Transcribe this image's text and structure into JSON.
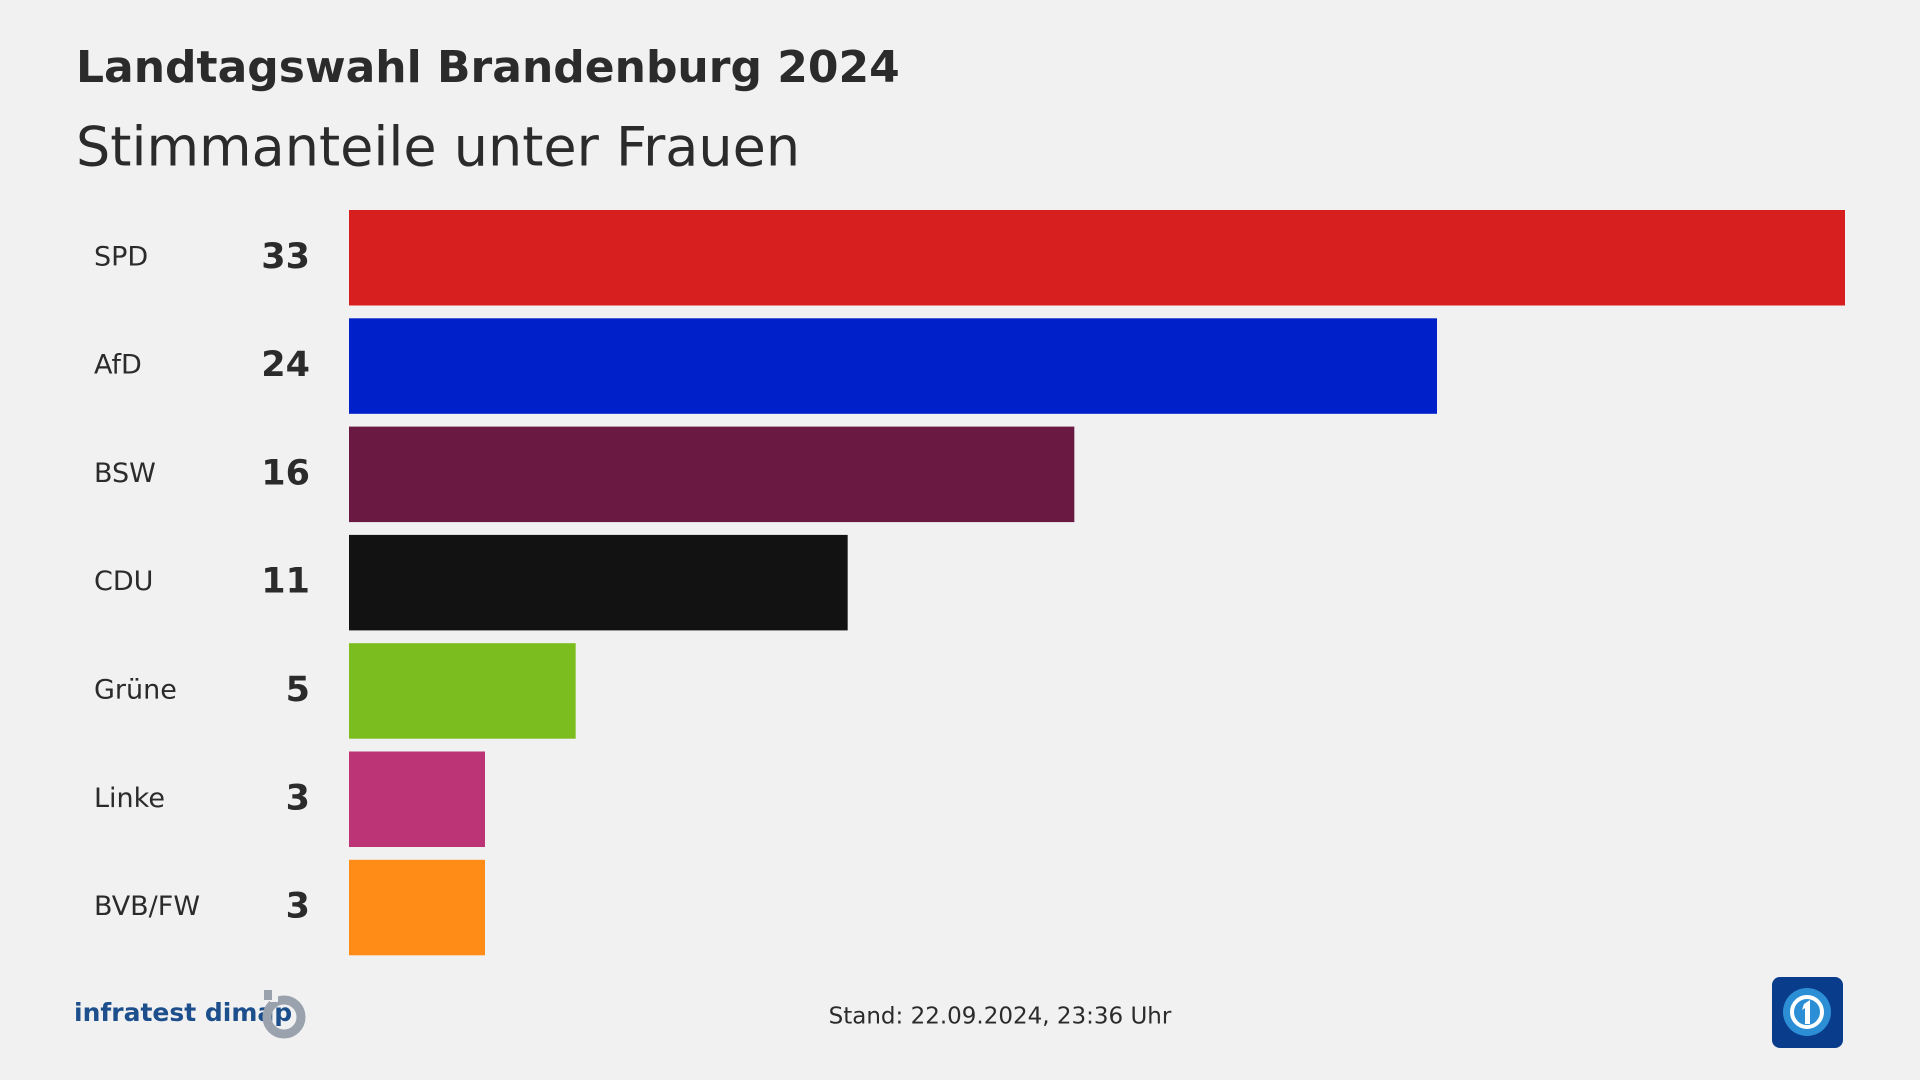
{
  "chart_data": {
    "type": "bar",
    "orientation": "horizontal",
    "title": "Landtagswahl Brandenburg 2024",
    "subtitle": "Stimmanteile unter Frauen",
    "categories": [
      "SPD",
      "AfD",
      "BSW",
      "CDU",
      "Grüne",
      "Linke",
      "BVB/FW"
    ],
    "values": [
      33,
      24,
      16,
      11,
      5,
      3,
      3
    ],
    "colors": [
      "#d71f1f",
      "#0021c9",
      "#6a1942",
      "#121212",
      "#7bbd1e",
      "#bc3475",
      "#ff8c17"
    ]
  },
  "footer": {
    "source": "infratest dimap",
    "timestamp": "Stand:  22.09.2024, 23:36 Uhr"
  }
}
